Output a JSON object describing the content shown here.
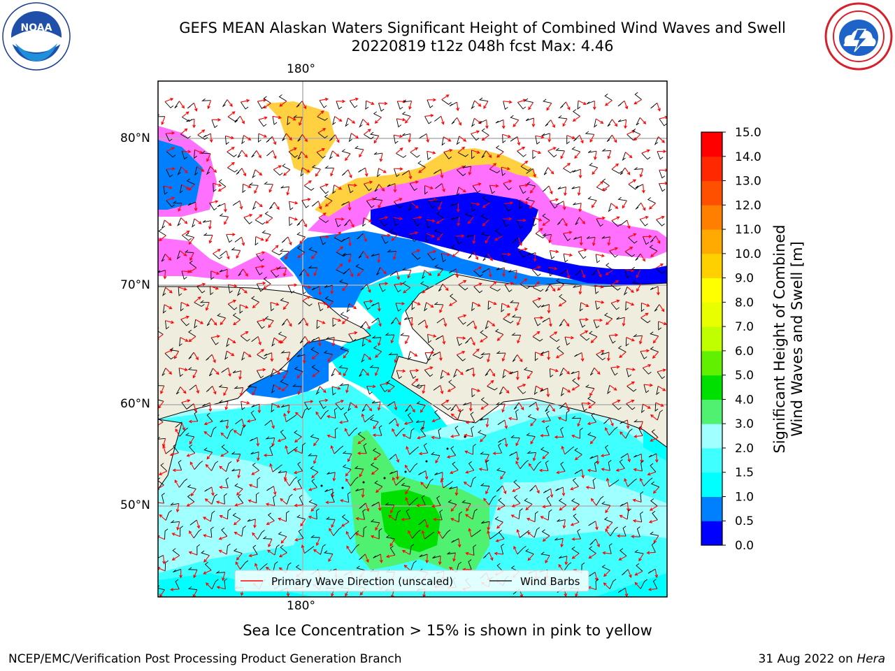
{
  "header": {
    "title_line1": "GEFS MEAN Alaskan Waters Significant Height of Combined Wind Waves and Swell",
    "title_line2": "20220819 t12z 048h fcst   Max: 4.46"
  },
  "logos": {
    "left": "noaa-logo",
    "left_text": "NOAA",
    "right": "nws-logo"
  },
  "map": {
    "lon_labels": [
      "180°",
      "180°"
    ],
    "lat_labels": [
      "80°N",
      "70°N",
      "60°N",
      "50°N"
    ],
    "gridlines": true,
    "land_color": "#efedde",
    "ice_note": "Sea Ice Concentration > 15% is shown in pink to yellow"
  },
  "legend": {
    "items": [
      {
        "label": "Primary Wave Direction (unscaled)",
        "color": "#ff0000"
      },
      {
        "label": "Wind Barbs",
        "color": "#000000"
      }
    ]
  },
  "colorbar": {
    "title_line1": "Significant Height of Combined",
    "title_line2": "Wind Waves and Swell [m]",
    "ticks": [
      "0.0",
      "0.5",
      "1.0",
      "1.5",
      "2.0",
      "3.0",
      "4.0",
      "5.0",
      "6.0",
      "7.0",
      "8.0",
      "9.0",
      "10.0",
      "11.0",
      "12.0",
      "13.0",
      "14.0",
      "15.0"
    ],
    "colors": [
      "#0000ff",
      "#0080ff",
      "#00ffff",
      "#40ffff",
      "#a0ffff",
      "#50f070",
      "#00e000",
      "#60f000",
      "#c0ff00",
      "#e8ff00",
      "#ffff00",
      "#ffd000",
      "#ffaa00",
      "#ff8000",
      "#ff5000",
      "#ff2800",
      "#ff0000"
    ]
  },
  "footer": {
    "credit": "NCEP/EMC/Verification Post Processing Product Generation Branch",
    "date": "31 Aug 2022 on",
    "host": "Hera"
  }
}
